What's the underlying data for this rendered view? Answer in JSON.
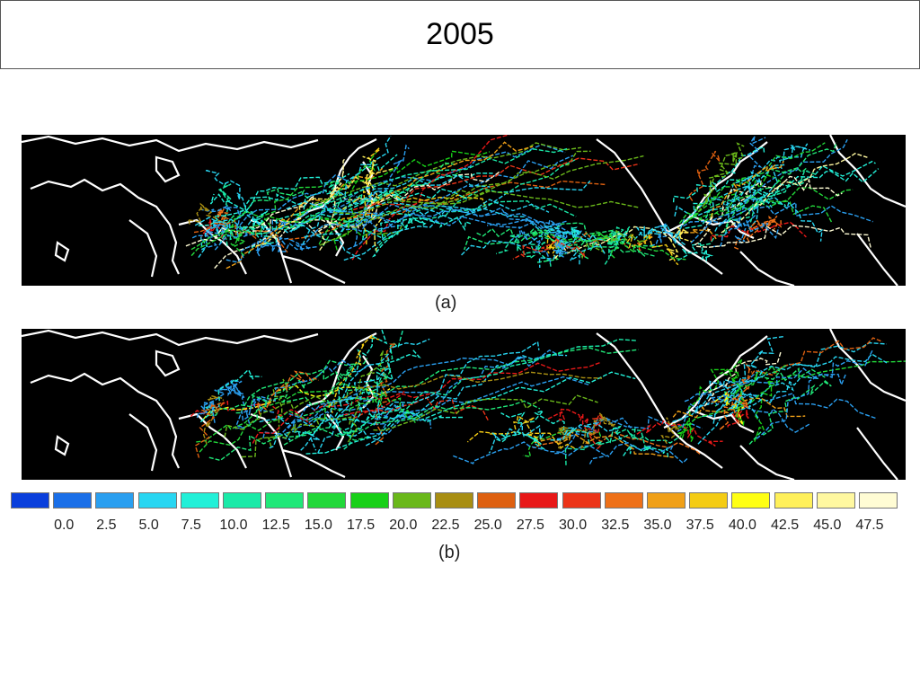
{
  "header": {
    "title": "2005"
  },
  "panels": [
    {
      "id": "a",
      "caption": "(a)"
    },
    {
      "id": "b",
      "caption": "(b)"
    }
  ],
  "legend": {
    "colors": [
      "#0a3fdc",
      "#1a6fe8",
      "#2a9ff0",
      "#28d6f2",
      "#22f0d8",
      "#1aeaa8",
      "#20e878",
      "#22d83a",
      "#18d018",
      "#6ab81a",
      "#a88e12",
      "#de6010",
      "#e81818",
      "#ec3418",
      "#ee7018",
      "#f0a018",
      "#f4cc14",
      "#ffff14",
      "#fff05a",
      "#fff8a0",
      "#fffcd4"
    ],
    "tick_labels": [
      "0.0",
      "2.5",
      "5.0",
      "7.5",
      "10.0",
      "12.5",
      "15.0",
      "17.5",
      "20.0",
      "22.5",
      "25.0",
      "27.5",
      "30.0",
      "32.5",
      "35.0",
      "37.5",
      "40.0",
      "42.5",
      "45.0",
      "47.5"
    ]
  },
  "map_style": {
    "ocean": "#000000",
    "coast": "#ffffff"
  }
}
